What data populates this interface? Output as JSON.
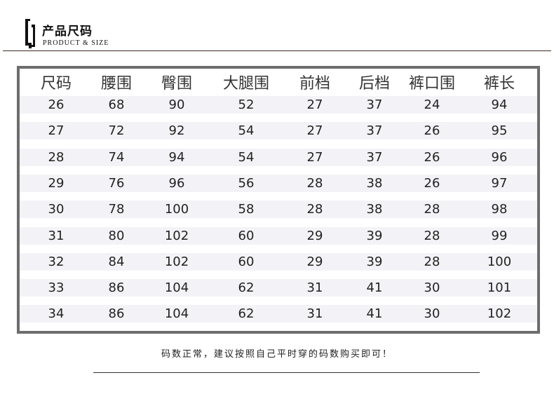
{
  "header": {
    "title_cn": "产品尺码",
    "title_en": "PRODUCT & SIZE",
    "logo_icon": "bracket-logo"
  },
  "table": {
    "columns": [
      "尺码",
      "腰围",
      "臀围",
      "大腿围",
      "前档",
      "后档",
      "裤口围",
      "裤长"
    ],
    "rows": [
      [
        "26",
        "68",
        "90",
        "52",
        "27",
        "37",
        "24",
        "94"
      ],
      [
        "27",
        "72",
        "92",
        "54",
        "27",
        "37",
        "26",
        "95"
      ],
      [
        "28",
        "74",
        "94",
        "54",
        "27",
        "37",
        "26",
        "96"
      ],
      [
        "29",
        "76",
        "96",
        "56",
        "28",
        "38",
        "26",
        "97"
      ],
      [
        "30",
        "78",
        "100",
        "58",
        "28",
        "38",
        "28",
        "98"
      ],
      [
        "31",
        "80",
        "102",
        "60",
        "29",
        "39",
        "28",
        "99"
      ],
      [
        "32",
        "84",
        "102",
        "60",
        "29",
        "39",
        "28",
        "100"
      ],
      [
        "33",
        "86",
        "104",
        "62",
        "31",
        "41",
        "30",
        "101"
      ],
      [
        "34",
        "86",
        "104",
        "62",
        "31",
        "41",
        "30",
        "102"
      ]
    ],
    "border_color": "#6d6d6d",
    "band_color": "#f3f3f7"
  },
  "footer": {
    "note": "码数正常，建议按照自己平时穿的码数购买即可！"
  }
}
